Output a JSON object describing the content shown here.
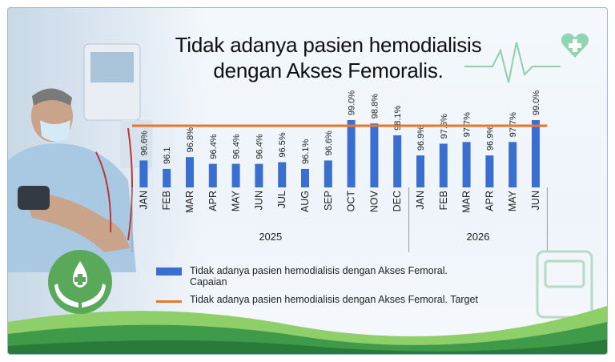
{
  "title": {
    "line1": "Tidak adanya pasien hemodialisis",
    "line2": "dengan Akses Femoralis."
  },
  "colors": {
    "bar": "#3a6fd0",
    "target_line": "#e8762c",
    "accent_green": "#4caf6a"
  },
  "icons": [
    "heart-plus-icon",
    "hands-drop-icon",
    "heartbeat-line-icon",
    "device-icon"
  ],
  "legend": {
    "bar_label_line1": "Tidak adanya pasien hemodialisis dengan Akses Femoral.",
    "bar_label_line2": "Capaian",
    "line_label": "Tidak adanya pasien hemodialisis dengan Akses Femoral. Target"
  },
  "chart_data": {
    "type": "bar",
    "categories": [
      "JAN",
      "FEB",
      "MAR",
      "APR",
      "MAY",
      "JUN",
      "JUL",
      "AUG",
      "SEP",
      "OCT",
      "NOV",
      "DEC",
      "JAN",
      "FEB",
      "MAR",
      "APR",
      "MAY",
      "JUN"
    ],
    "groups": [
      {
        "label": "2025",
        "count": 12
      },
      {
        "label": "2026",
        "count": 6
      }
    ],
    "series": [
      {
        "name": "Tidak adanya pasien hemodialisis dengan Akses Femoral. Capaian",
        "values": [
          96.6,
          96.1,
          96.8,
          96.4,
          96.4,
          96.4,
          96.5,
          96.1,
          96.6,
          99.0,
          98.8,
          98.1,
          96.9,
          97.6,
          97.7,
          96.9,
          97.7,
          99.0
        ],
        "labels": [
          "96.6%",
          "96.1",
          "96.8%",
          "96.4%",
          "96.4%",
          "96.4%",
          "96.5%",
          "96.1%",
          "96.6%",
          "99.0%",
          "98.8%",
          "98.1%",
          "96.9%",
          "97.6%",
          "97.7%",
          "96.9%",
          "97.7%",
          "99.0%"
        ]
      },
      {
        "name": "Tidak adanya pasien hemodialisis dengan Akses Femoral. Target",
        "type": "line",
        "value": 100
      }
    ],
    "legend_position": "bottom",
    "grid": false
  }
}
